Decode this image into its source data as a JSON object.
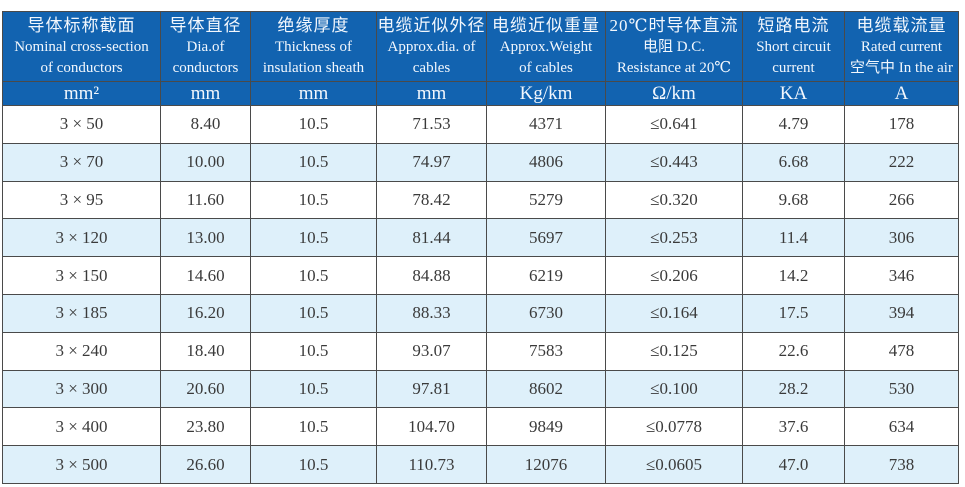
{
  "colors": {
    "header_bg": "#1263b0",
    "header_text": "#f2f7fd",
    "row_alt_bg": "#def0fa",
    "row_bg": "#ffffff",
    "data_text": "#3a3a3a",
    "border": "#4a4a4a"
  },
  "table": {
    "columns": [
      {
        "id": "nominal-cross-section",
        "lines": [
          "导体标称截面",
          "Nominal cross-section",
          "of conductors"
        ],
        "unit": "mm²"
      },
      {
        "id": "dia-of-conductors",
        "lines": [
          "导体直径",
          "Dia.of",
          "conductors"
        ],
        "unit": "mm"
      },
      {
        "id": "insulation-thickness",
        "lines": [
          "绝缘厚度",
          "Thickness of",
          "insulation sheath"
        ],
        "unit": "mm"
      },
      {
        "id": "approx-dia-of-cables",
        "lines": [
          "电缆近似外径",
          "Approx.dia. of",
          "cables"
        ],
        "unit": "mm"
      },
      {
        "id": "approx-weight-of-cables",
        "lines": [
          "电缆近似重量",
          "Approx.Weight",
          "of cables"
        ],
        "unit": "Kg/km"
      },
      {
        "id": "dc-resistance-20c",
        "lines": [
          "20℃时导体直流",
          "电阻 D.C.",
          "Resistance at 20℃"
        ],
        "unit": "Ω/km"
      },
      {
        "id": "short-circuit-current",
        "lines": [
          "短路电流",
          "Short circuit",
          "current"
        ],
        "unit": "KA"
      },
      {
        "id": "rated-current-in-air",
        "lines": [
          "电缆载流量",
          "Rated current",
          "空气中 In the air"
        ],
        "unit": "A"
      }
    ],
    "rows": [
      [
        "3 × 50",
        "8.40",
        "10.5",
        "71.53",
        "4371",
        "≤0.641",
        "4.79",
        "178"
      ],
      [
        "3 × 70",
        "10.00",
        "10.5",
        "74.97",
        "4806",
        "≤0.443",
        "6.68",
        "222"
      ],
      [
        "3 × 95",
        "11.60",
        "10.5",
        "78.42",
        "5279",
        "≤0.320",
        "9.68",
        "266"
      ],
      [
        "3 × 120",
        "13.00",
        "10.5",
        "81.44",
        "5697",
        "≤0.253",
        "11.4",
        "306"
      ],
      [
        "3 × 150",
        "14.60",
        "10.5",
        "84.88",
        "6219",
        "≤0.206",
        "14.2",
        "346"
      ],
      [
        "3 × 185",
        "16.20",
        "10.5",
        "88.33",
        "6730",
        "≤0.164",
        "17.5",
        "394"
      ],
      [
        "3 × 240",
        "18.40",
        "10.5",
        "93.07",
        "7583",
        "≤0.125",
        "22.6",
        "478"
      ],
      [
        "3 × 300",
        "20.60",
        "10.5",
        "97.81",
        "8602",
        "≤0.100",
        "28.2",
        "530"
      ],
      [
        "3 × 400",
        "23.80",
        "10.5",
        "104.70",
        "9849",
        "≤0.0778",
        "37.6",
        "634"
      ],
      [
        "3 × 500",
        "26.60",
        "10.5",
        "110.73",
        "12076",
        "≤0.0605",
        "47.0",
        "738"
      ]
    ]
  }
}
